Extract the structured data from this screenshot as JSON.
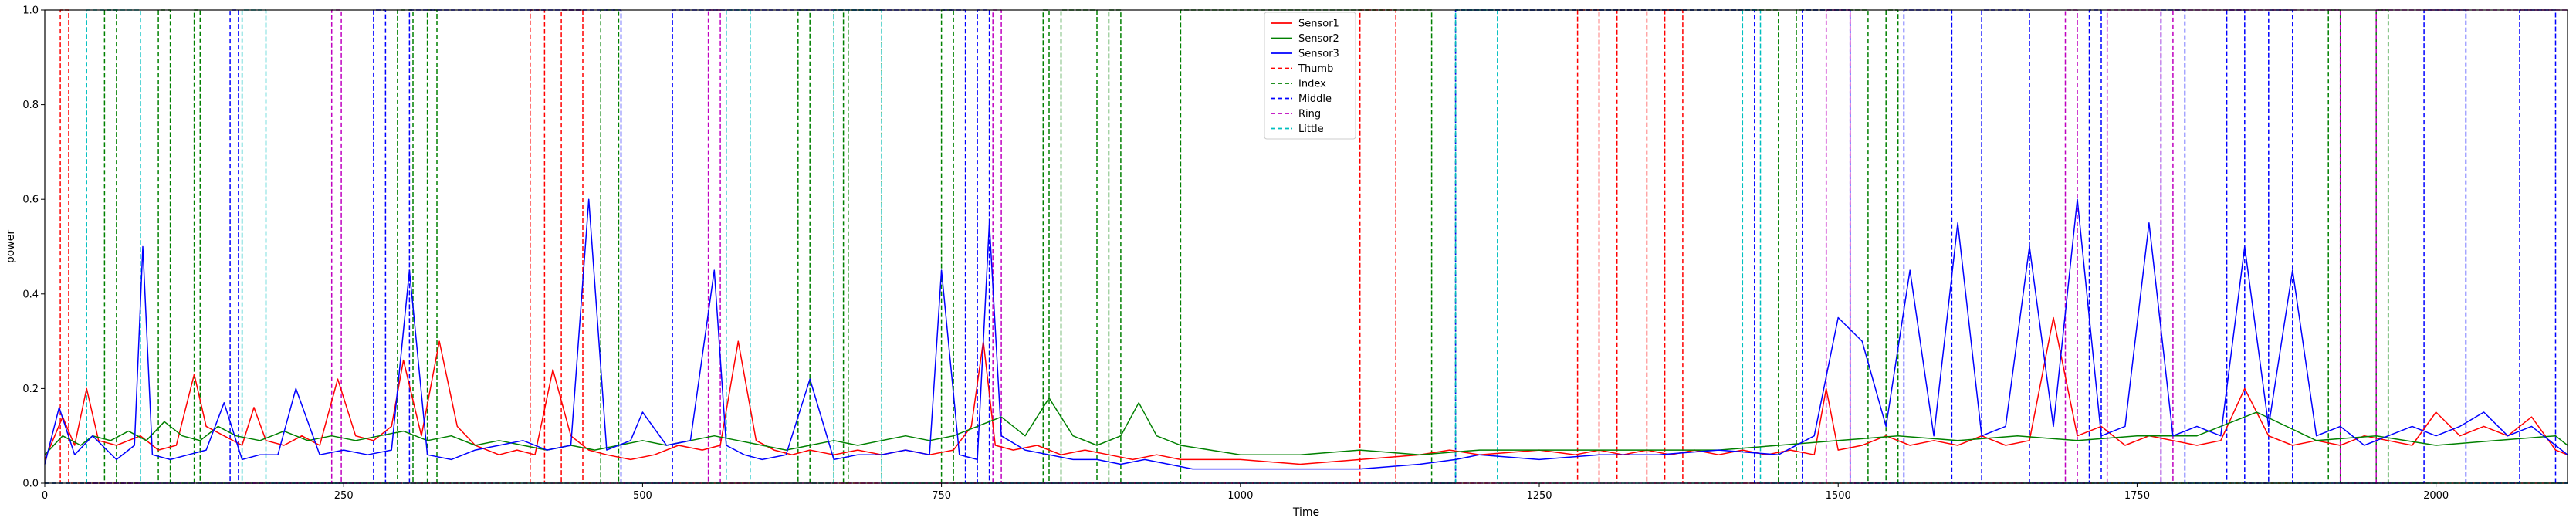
{
  "chart_data": {
    "type": "line",
    "title": "",
    "xlabel": "Time",
    "ylabel": "power",
    "xlim": [
      0,
      2110
    ],
    "ylim": [
      0,
      1.0
    ],
    "xticks": [
      0,
      250,
      500,
      750,
      1000,
      1250,
      1500,
      1750,
      2000
    ],
    "yticks": [
      0.0,
      0.2,
      0.4,
      0.6,
      0.8,
      1.0
    ],
    "xtick_labels": [
      "0",
      "250",
      "500",
      "750",
      "1000",
      "1250",
      "1500",
      "1750",
      "2000"
    ],
    "ytick_labels": [
      "0.0",
      "0.2",
      "0.4",
      "0.6",
      "0.8",
      "1.0"
    ],
    "legend_position": "top-center",
    "grid": false,
    "series": [
      {
        "name": "Sensor1",
        "style": "solid",
        "color": "#ff0000",
        "x": [
          0,
          15,
          25,
          35,
          45,
          60,
          80,
          95,
          110,
          125,
          135,
          150,
          165,
          175,
          185,
          200,
          215,
          230,
          245,
          260,
          275,
          290,
          300,
          315,
          330,
          345,
          360,
          380,
          395,
          410,
          425,
          440,
          455,
          470,
          490,
          510,
          530,
          550,
          565,
          580,
          595,
          610,
          625,
          640,
          660,
          680,
          700,
          720,
          740,
          760,
          775,
          785,
          795,
          810,
          830,
          850,
          870,
          890,
          910,
          930,
          950,
          1000,
          1050,
          1100,
          1150,
          1175,
          1200,
          1250,
          1280,
          1300,
          1320,
          1340,
          1360,
          1380,
          1400,
          1420,
          1440,
          1460,
          1480,
          1490,
          1500,
          1520,
          1540,
          1560,
          1580,
          1600,
          1620,
          1640,
          1660,
          1680,
          1700,
          1720,
          1740,
          1760,
          1780,
          1800,
          1820,
          1840,
          1860,
          1880,
          1900,
          1920,
          1940,
          1960,
          1980,
          2000,
          2020,
          2040,
          2060,
          2080,
          2100,
          2110
        ],
        "y": [
          0.05,
          0.14,
          0.08,
          0.2,
          0.09,
          0.08,
          0.1,
          0.07,
          0.08,
          0.23,
          0.12,
          0.1,
          0.08,
          0.16,
          0.09,
          0.08,
          0.1,
          0.08,
          0.22,
          0.1,
          0.09,
          0.12,
          0.26,
          0.1,
          0.3,
          0.12,
          0.08,
          0.06,
          0.07,
          0.06,
          0.24,
          0.1,
          0.07,
          0.06,
          0.05,
          0.06,
          0.08,
          0.07,
          0.08,
          0.3,
          0.09,
          0.07,
          0.06,
          0.07,
          0.06,
          0.07,
          0.06,
          0.07,
          0.06,
          0.07,
          0.12,
          0.3,
          0.08,
          0.07,
          0.08,
          0.06,
          0.07,
          0.06,
          0.05,
          0.06,
          0.05,
          0.05,
          0.04,
          0.05,
          0.06,
          0.07,
          0.06,
          0.07,
          0.06,
          0.07,
          0.06,
          0.07,
          0.06,
          0.07,
          0.06,
          0.07,
          0.06,
          0.07,
          0.06,
          0.2,
          0.07,
          0.08,
          0.1,
          0.08,
          0.09,
          0.08,
          0.1,
          0.08,
          0.09,
          0.35,
          0.1,
          0.12,
          0.08,
          0.1,
          0.09,
          0.08,
          0.09,
          0.2,
          0.1,
          0.08,
          0.09,
          0.08,
          0.1,
          0.09,
          0.08,
          0.15,
          0.1,
          0.12,
          0.1,
          0.14,
          0.07,
          0.06
        ]
      },
      {
        "name": "Sensor2",
        "style": "solid",
        "color": "#008000",
        "x": [
          0,
          15,
          30,
          40,
          55,
          70,
          85,
          100,
          115,
          130,
          145,
          160,
          180,
          200,
          220,
          240,
          260,
          280,
          300,
          320,
          340,
          360,
          380,
          400,
          420,
          440,
          460,
          480,
          500,
          520,
          540,
          560,
          580,
          600,
          620,
          640,
          660,
          680,
          700,
          720,
          740,
          760,
          780,
          800,
          820,
          840,
          860,
          880,
          900,
          915,
          930,
          950,
          1000,
          1050,
          1100,
          1150,
          1200,
          1250,
          1300,
          1350,
          1400,
          1450,
          1500,
          1550,
          1600,
          1650,
          1700,
          1750,
          1800,
          1850,
          1900,
          1950,
          2000,
          2050,
          2100,
          2110
        ],
        "y": [
          0.06,
          0.1,
          0.08,
          0.1,
          0.09,
          0.11,
          0.09,
          0.13,
          0.1,
          0.09,
          0.12,
          0.1,
          0.09,
          0.11,
          0.09,
          0.1,
          0.09,
          0.1,
          0.11,
          0.09,
          0.1,
          0.08,
          0.09,
          0.08,
          0.07,
          0.08,
          0.07,
          0.08,
          0.09,
          0.08,
          0.09,
          0.1,
          0.09,
          0.08,
          0.07,
          0.08,
          0.09,
          0.08,
          0.09,
          0.1,
          0.09,
          0.1,
          0.12,
          0.14,
          0.1,
          0.18,
          0.1,
          0.08,
          0.1,
          0.17,
          0.1,
          0.08,
          0.06,
          0.06,
          0.07,
          0.06,
          0.07,
          0.07,
          0.07,
          0.07,
          0.07,
          0.08,
          0.09,
          0.1,
          0.09,
          0.1,
          0.09,
          0.1,
          0.1,
          0.15,
          0.09,
          0.1,
          0.08,
          0.09,
          0.1,
          0.08
        ]
      },
      {
        "name": "Sensor3",
        "style": "solid",
        "color": "#0000ff",
        "x": [
          0,
          12,
          25,
          40,
          60,
          75,
          82,
          90,
          105,
          120,
          135,
          150,
          165,
          180,
          195,
          210,
          230,
          250,
          270,
          290,
          305,
          320,
          340,
          360,
          380,
          400,
          420,
          440,
          455,
          470,
          490,
          500,
          520,
          540,
          560,
          570,
          585,
          600,
          620,
          640,
          660,
          680,
          700,
          720,
          740,
          750,
          765,
          780,
          790,
          800,
          820,
          840,
          860,
          880,
          900,
          920,
          940,
          960,
          1000,
          1050,
          1100,
          1150,
          1180,
          1200,
          1250,
          1300,
          1350,
          1400,
          1450,
          1480,
          1500,
          1520,
          1540,
          1560,
          1580,
          1600,
          1620,
          1640,
          1660,
          1680,
          1700,
          1720,
          1740,
          1760,
          1780,
          1800,
          1820,
          1840,
          1860,
          1880,
          1900,
          1920,
          1940,
          1960,
          1980,
          2000,
          2020,
          2040,
          2060,
          2080,
          2100,
          2110
        ],
        "y": [
          0.04,
          0.16,
          0.06,
          0.1,
          0.05,
          0.08,
          0.5,
          0.06,
          0.05,
          0.06,
          0.07,
          0.17,
          0.05,
          0.06,
          0.06,
          0.2,
          0.06,
          0.07,
          0.06,
          0.07,
          0.45,
          0.06,
          0.05,
          0.07,
          0.08,
          0.09,
          0.07,
          0.08,
          0.6,
          0.07,
          0.09,
          0.15,
          0.08,
          0.09,
          0.45,
          0.08,
          0.06,
          0.05,
          0.06,
          0.22,
          0.05,
          0.06,
          0.06,
          0.07,
          0.06,
          0.45,
          0.06,
          0.05,
          0.55,
          0.1,
          0.07,
          0.06,
          0.05,
          0.05,
          0.04,
          0.05,
          0.04,
          0.03,
          0.03,
          0.03,
          0.03,
          0.04,
          0.05,
          0.06,
          0.05,
          0.06,
          0.06,
          0.07,
          0.06,
          0.1,
          0.35,
          0.3,
          0.12,
          0.45,
          0.1,
          0.55,
          0.1,
          0.12,
          0.5,
          0.12,
          0.6,
          0.1,
          0.12,
          0.55,
          0.1,
          0.12,
          0.1,
          0.5,
          0.12,
          0.45,
          0.1,
          0.12,
          0.08,
          0.1,
          0.12,
          0.1,
          0.12,
          0.15,
          0.1,
          0.12,
          0.08,
          0.06
        ]
      },
      {
        "name": "Thumb",
        "style": "dashed",
        "color": "#ff0000",
        "x": [
          0,
          13,
          13,
          20,
          20,
          406,
          406,
          418,
          418,
          432,
          432,
          450,
          450,
          1100,
          1100,
          1130,
          1130,
          1282,
          1282,
          1300,
          1300,
          1315,
          1315,
          1340,
          1340,
          1355,
          1355,
          1370,
          1370,
          2110
        ],
        "y": [
          0,
          0,
          1,
          1,
          0,
          0,
          1,
          1,
          0,
          0,
          1,
          1,
          0,
          0,
          1,
          1,
          0,
          0,
          1,
          1,
          0,
          0,
          1,
          1,
          0,
          0,
          1,
          1,
          0,
          0
        ]
      },
      {
        "name": "Index",
        "style": "dashed",
        "color": "#008000",
        "x": [
          0,
          50,
          50,
          60,
          60,
          95,
          95,
          105,
          105,
          125,
          125,
          130,
          130,
          295,
          295,
          308,
          308,
          320,
          320,
          328,
          328,
          465,
          465,
          480,
          480,
          630,
          630,
          640,
          640,
          660,
          660,
          668,
          668,
          672,
          672,
          700,
          700,
          750,
          750,
          760,
          760,
          835,
          835,
          840,
          840,
          850,
          850,
          880,
          880,
          890,
          890,
          900,
          900,
          950,
          950,
          1160,
          1160,
          1180,
          1180,
          1450,
          1450,
          1465,
          1465,
          1525,
          1525,
          1540,
          1540,
          1550,
          1550,
          1910,
          1910,
          1920,
          1920,
          1950,
          1950,
          1960,
          1960,
          2110
        ],
        "y": [
          0,
          0,
          1,
          1,
          0,
          0,
          1,
          1,
          0,
          0,
          1,
          1,
          0,
          0,
          1,
          1,
          0,
          0,
          1,
          1,
          0,
          0,
          1,
          1,
          0,
          0,
          1,
          1,
          0,
          0,
          1,
          1,
          0,
          0,
          1,
          1,
          0,
          0,
          1,
          1,
          0,
          0,
          1,
          1,
          0,
          0,
          1,
          1,
          0,
          0,
          1,
          1,
          0,
          0,
          1,
          1,
          0,
          0,
          1,
          1,
          0,
          0,
          1,
          1,
          0,
          0,
          1,
          1,
          0,
          0,
          1,
          1,
          0,
          0,
          1,
          1,
          0,
          0
        ]
      },
      {
        "name": "Middle",
        "style": "dashed",
        "color": "#0000ff",
        "x": [
          0,
          155,
          155,
          162,
          162,
          275,
          275,
          285,
          285,
          305,
          305,
          482,
          482,
          525,
          525,
          770,
          770,
          780,
          780,
          790,
          790,
          1180,
          1180,
          1430,
          1430,
          1470,
          1470,
          1510,
          1510,
          1555,
          1555,
          1595,
          1595,
          1620,
          1620,
          1660,
          1660,
          1710,
          1710,
          1720,
          1720,
          1770,
          1770,
          1790,
          1790,
          1825,
          1825,
          1840,
          1840,
          1860,
          1860,
          1880,
          1880,
          1990,
          1990,
          2025,
          2025,
          2070,
          2070,
          2100,
          2100,
          2110
        ],
        "y": [
          0,
          0,
          1,
          1,
          0,
          0,
          1,
          1,
          0,
          0,
          1,
          1,
          0,
          0,
          1,
          1,
          0,
          0,
          1,
          1,
          0,
          0,
          1,
          1,
          0,
          0,
          1,
          1,
          0,
          0,
          1,
          1,
          0,
          0,
          1,
          1,
          0,
          0,
          1,
          1,
          0,
          0,
          1,
          1,
          0,
          0,
          1,
          1,
          0,
          0,
          1,
          1,
          0,
          0,
          1,
          1,
          0,
          0,
          1,
          1,
          0,
          0
        ]
      },
      {
        "name": "Ring",
        "style": "dashed",
        "color": "#bf00bf",
        "x": [
          0,
          240,
          240,
          248,
          248,
          555,
          555,
          565,
          565,
          793,
          793,
          800,
          800,
          1490,
          1490,
          1510,
          1510,
          1690,
          1690,
          1700,
          1700,
          1725,
          1725,
          1770,
          1770,
          1780,
          1780,
          1920,
          1920,
          1950,
          1950,
          2110
        ],
        "y": [
          0,
          0,
          1,
          1,
          0,
          0,
          1,
          1,
          0,
          0,
          1,
          1,
          0,
          0,
          1,
          1,
          0,
          0,
          1,
          1,
          0,
          0,
          1,
          1,
          0,
          0,
          1,
          1,
          0,
          0,
          1,
          1
        ]
      },
      {
        "name": "Little",
        "style": "dashed",
        "color": "#00bfbf",
        "x": [
          0,
          35,
          35,
          80,
          80,
          165,
          165,
          185,
          185,
          570,
          570,
          590,
          590,
          660,
          660,
          700,
          700,
          1180,
          1180,
          1215,
          1215,
          1420,
          1420,
          1435,
          1435,
          2110
        ],
        "y": [
          0,
          0,
          1,
          1,
          0,
          0,
          1,
          1,
          0,
          0,
          1,
          1,
          0,
          0,
          1,
          1,
          0,
          0,
          1,
          1,
          0,
          0,
          1,
          1,
          0,
          0
        ]
      }
    ]
  }
}
